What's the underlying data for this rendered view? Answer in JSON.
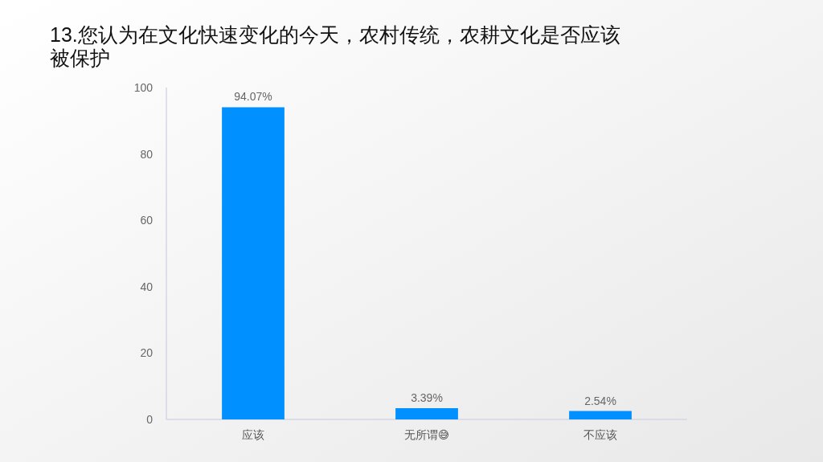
{
  "chart_data": {
    "type": "bar",
    "title": "13.您认为在文化快速变化的今天，农村传统，农耕文化是否应该被保护",
    "categories": [
      "应该",
      "无所谓😅",
      "不应该"
    ],
    "values": [
      94.07,
      3.39,
      2.54
    ],
    "color": "#0090ff",
    "value_labels": [
      "94.07%",
      "3.39%",
      "2.54%"
    ],
    "ylim": [
      0,
      100
    ],
    "yticks": [
      0,
      20,
      40,
      60,
      80,
      100
    ],
    "grid": false
  }
}
